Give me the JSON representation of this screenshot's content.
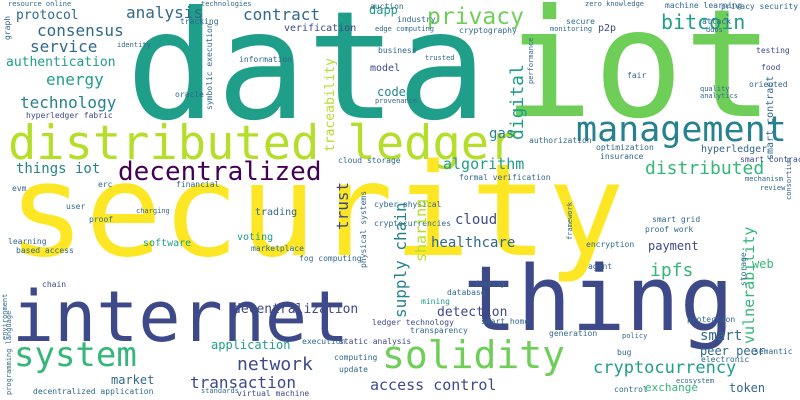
{
  "words": {
    "data": "data",
    "iot": "iot",
    "security": "security",
    "internet": "internet",
    "thing": "thing",
    "distributed_ledger": "distributed ledger",
    "management": "management",
    "decentralized": "decentralized",
    "system": "system",
    "solidity": "solidity",
    "privacy": "privacy",
    "bitcoin": "bitcoin",
    "contract": "contract",
    "analysis": "analysis",
    "consensus": "consensus",
    "service": "service",
    "authentication": "authentication",
    "energy": "energy",
    "technology": "technology",
    "things_iot": "things iot",
    "algorithm": "algorithm",
    "distributed": "distributed",
    "cloud": "cloud",
    "healthcare": "healthcare",
    "trust": "trust",
    "supply_chain": "supply chain",
    "sharing": "sharing",
    "ipfs": "ipfs",
    "payment": "payment",
    "network": "network",
    "transaction": "transaction",
    "access_control": "access control",
    "cryptocurrency": "cryptocurrency",
    "smart": "smart",
    "peer_peer": "peer peer",
    "vulnerability": "vulnerability",
    "detection": "detection",
    "decentralization": "decentralization",
    "application": "application",
    "market": "market",
    "token": "token",
    "exchange": "exchange",
    "digital": "digital",
    "gas": "gas",
    "code": "code",
    "model": "model",
    "traceability": "traceability",
    "verification": "verification",
    "protocol": "protocol",
    "dapp": "dapp",
    "hyperledger": "hyperledger",
    "hyperledger_fabric": "hyperledger fabric",
    "software": "software",
    "voting": "voting",
    "trading": "trading",
    "web": "web",
    "smart_contract": "smart contract",
    "p2p": "p2p",
    "cloud_storage": "cloud storage",
    "formal_verification": "formal verification",
    "smart_grid": "smart grid",
    "proof_work": "proof work",
    "mining": "mining",
    "ledger_technology": "ledger technology",
    "static_analysis": "static analysis",
    "protection": "protection",
    "semantic": "semantic",
    "electronic": "electronic",
    "virtual_machine": "virtual machine",
    "decentralized_application": "decentralized application",
    "fog_computing": "fog computing",
    "marketplace": "marketplace",
    "encryption": "encryption",
    "based_access": "based access",
    "learning": "learning",
    "chain": "chain",
    "proof": "proof",
    "cyber_physical": "cyber physical",
    "cryptocurrencies": "cryptocurrencies",
    "physical_systems": "physical systems",
    "symbolic_execution": "symbolic execution",
    "information": "information",
    "industry": "industry",
    "cryptography": "cryptography",
    "secure": "secure",
    "machine_learning": "machine learning",
    "privacy_security": "privacy security",
    "testing": "testing",
    "food": "food",
    "oriented": "oriented",
    "business": "business",
    "optimization": "optimization",
    "authorization": "authorization",
    "insurance": "insurance",
    "auction": "auction",
    "zero_knowledge": "zero knowledge",
    "technologies": "technologies",
    "tracking": "tracking",
    "graph": "graph",
    "identity": "identity",
    "oracle": "oracle",
    "evm": "evm",
    "erc": "erc",
    "user": "user",
    "financial": "financial",
    "smart_home": "smart home",
    "attack": "attack",
    "agent": "agent",
    "ddos": "ddos",
    "fair": "fair",
    "quality": "quality",
    "transparency": "transparency",
    "generation": "generation",
    "update": "update",
    "computing": "computing",
    "bug": "bug",
    "policy": "policy",
    "control": "control",
    "execution": "execution",
    "database": "database",
    "fuzzing": "fuzzing",
    "charging": "charging",
    "review": "review",
    "mechanism": "mechanism",
    "storage": "storage",
    "framework": "framework",
    "standards": "standards",
    "programming_language": "programming language",
    "environment": "environment",
    "consortium": "consortium",
    "edge_computing": "edge computing",
    "provenance": "provenance",
    "trusted": "trusted",
    "analytics": "analytics",
    "performance": "performance",
    "monitoring": "monitoring",
    "resource_online": "resource online",
    "ecosystem": "ecosystem"
  },
  "colors": {
    "yellow": "#fde725",
    "lime": "#b5de2b",
    "green": "#6ece58",
    "emerald": "#35b779",
    "teal": "#1f9e89",
    "cyan": "#26828e",
    "blue": "#31688e",
    "indigo": "#3e4989",
    "violet": "#482878",
    "purple": "#440154"
  }
}
